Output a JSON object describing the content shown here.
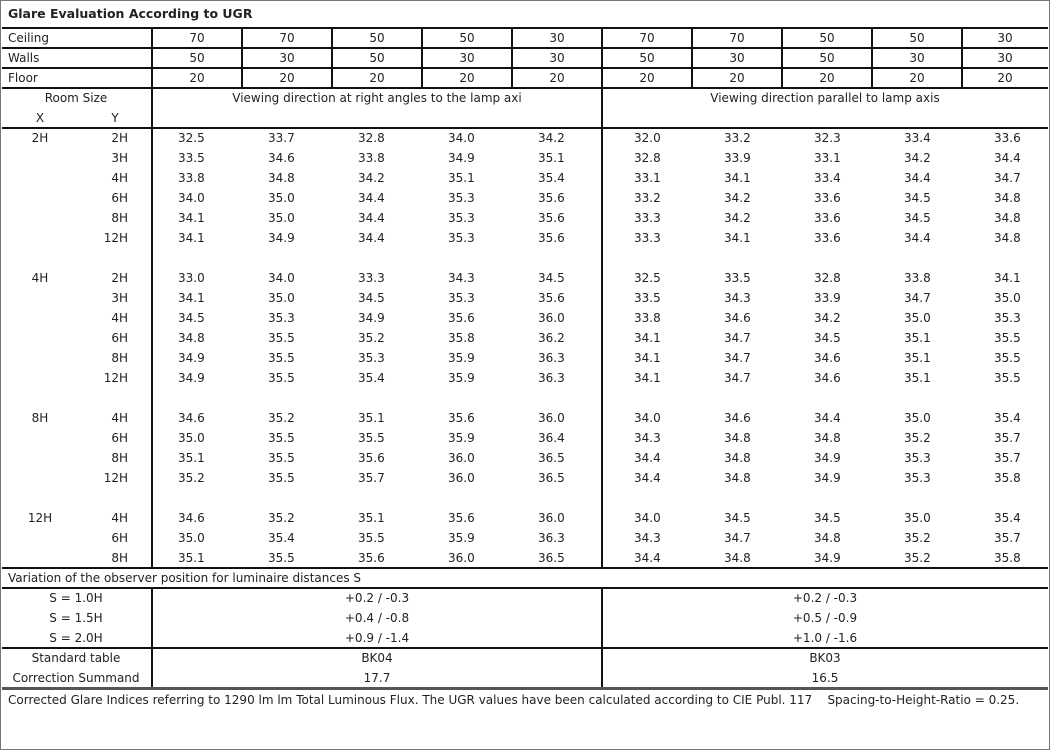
{
  "title": "Glare Evaluation According to UGR",
  "reflectances": [
    {
      "label": "Ceiling",
      "values": [
        "70",
        "70",
        "50",
        "50",
        "30",
        "70",
        "70",
        "50",
        "50",
        "30"
      ]
    },
    {
      "label": "Walls",
      "values": [
        "50",
        "30",
        "50",
        "30",
        "30",
        "50",
        "30",
        "50",
        "30",
        "30"
      ]
    },
    {
      "label": "Floor",
      "values": [
        "20",
        "20",
        "20",
        "20",
        "20",
        "20",
        "20",
        "20",
        "20",
        "20"
      ]
    }
  ],
  "room_size_label": "Room Size",
  "x_label": "X",
  "y_label": "Y",
  "perp_header": "Viewing direction at right angles to the lamp axi",
  "para_header": "Viewing direction parallel to lamp axis",
  "groups": [
    {
      "x": "2H",
      "rows": [
        {
          "y": "2H",
          "perp": [
            "32.5",
            "33.7",
            "32.8",
            "34.0",
            "34.2"
          ],
          "para": [
            "32.0",
            "33.2",
            "32.3",
            "33.4",
            "33.6"
          ]
        },
        {
          "y": "3H",
          "perp": [
            "33.5",
            "34.6",
            "33.8",
            "34.9",
            "35.1"
          ],
          "para": [
            "32.8",
            "33.9",
            "33.1",
            "34.2",
            "34.4"
          ]
        },
        {
          "y": "4H",
          "perp": [
            "33.8",
            "34.8",
            "34.2",
            "35.1",
            "35.4"
          ],
          "para": [
            "33.1",
            "34.1",
            "33.4",
            "34.4",
            "34.7"
          ]
        },
        {
          "y": "6H",
          "perp": [
            "34.0",
            "35.0",
            "34.4",
            "35.3",
            "35.6"
          ],
          "para": [
            "33.2",
            "34.2",
            "33.6",
            "34.5",
            "34.8"
          ]
        },
        {
          "y": "8H",
          "perp": [
            "34.1",
            "35.0",
            "34.4",
            "35.3",
            "35.6"
          ],
          "para": [
            "33.3",
            "34.2",
            "33.6",
            "34.5",
            "34.8"
          ]
        },
        {
          "y": "12H",
          "perp": [
            "34.1",
            "34.9",
            "34.4",
            "35.3",
            "35.6"
          ],
          "para": [
            "33.3",
            "34.1",
            "33.6",
            "34.4",
            "34.8"
          ]
        }
      ]
    },
    {
      "x": "4H",
      "rows": [
        {
          "y": "2H",
          "perp": [
            "33.0",
            "34.0",
            "33.3",
            "34.3",
            "34.5"
          ],
          "para": [
            "32.5",
            "33.5",
            "32.8",
            "33.8",
            "34.1"
          ]
        },
        {
          "y": "3H",
          "perp": [
            "34.1",
            "35.0",
            "34.5",
            "35.3",
            "35.6"
          ],
          "para": [
            "33.5",
            "34.3",
            "33.9",
            "34.7",
            "35.0"
          ]
        },
        {
          "y": "4H",
          "perp": [
            "34.5",
            "35.3",
            "34.9",
            "35.6",
            "36.0"
          ],
          "para": [
            "33.8",
            "34.6",
            "34.2",
            "35.0",
            "35.3"
          ]
        },
        {
          "y": "6H",
          "perp": [
            "34.8",
            "35.5",
            "35.2",
            "35.8",
            "36.2"
          ],
          "para": [
            "34.1",
            "34.7",
            "34.5",
            "35.1",
            "35.5"
          ]
        },
        {
          "y": "8H",
          "perp": [
            "34.9",
            "35.5",
            "35.3",
            "35.9",
            "36.3"
          ],
          "para": [
            "34.1",
            "34.7",
            "34.6",
            "35.1",
            "35.5"
          ]
        },
        {
          "y": "12H",
          "perp": [
            "34.9",
            "35.5",
            "35.4",
            "35.9",
            "36.3"
          ],
          "para": [
            "34.1",
            "34.7",
            "34.6",
            "35.1",
            "35.5"
          ]
        }
      ]
    },
    {
      "x": "8H",
      "rows": [
        {
          "y": "4H",
          "perp": [
            "34.6",
            "35.2",
            "35.1",
            "35.6",
            "36.0"
          ],
          "para": [
            "34.0",
            "34.6",
            "34.4",
            "35.0",
            "35.4"
          ]
        },
        {
          "y": "6H",
          "perp": [
            "35.0",
            "35.5",
            "35.5",
            "35.9",
            "36.4"
          ],
          "para": [
            "34.3",
            "34.8",
            "34.8",
            "35.2",
            "35.7"
          ]
        },
        {
          "y": "8H",
          "perp": [
            "35.1",
            "35.5",
            "35.6",
            "36.0",
            "36.5"
          ],
          "para": [
            "34.4",
            "34.8",
            "34.9",
            "35.3",
            "35.7"
          ]
        },
        {
          "y": "12H",
          "perp": [
            "35.2",
            "35.5",
            "35.7",
            "36.0",
            "36.5"
          ],
          "para": [
            "34.4",
            "34.8",
            "34.9",
            "35.3",
            "35.8"
          ]
        }
      ]
    },
    {
      "x": "12H",
      "rows": [
        {
          "y": "4H",
          "perp": [
            "34.6",
            "35.2",
            "35.1",
            "35.6",
            "36.0"
          ],
          "para": [
            "34.0",
            "34.5",
            "34.5",
            "35.0",
            "35.4"
          ]
        },
        {
          "y": "6H",
          "perp": [
            "35.0",
            "35.4",
            "35.5",
            "35.9",
            "36.3"
          ],
          "para": [
            "34.3",
            "34.7",
            "34.8",
            "35.2",
            "35.7"
          ]
        },
        {
          "y": "8H",
          "perp": [
            "35.1",
            "35.5",
            "35.6",
            "36.0",
            "36.5"
          ],
          "para": [
            "34.4",
            "34.8",
            "34.9",
            "35.2",
            "35.8"
          ]
        }
      ]
    }
  ],
  "variation_title": "Variation of the observer position for luminaire distances S",
  "variations": [
    {
      "label": "S = 1.0H",
      "perp": "+0.2 / -0.3",
      "para": "+0.2 / -0.3"
    },
    {
      "label": "S = 1.5H",
      "perp": "+0.4 / -0.8",
      "para": "+0.5 / -0.9"
    },
    {
      "label": "S = 2.0H",
      "perp": "+0.9 / -1.4",
      "para": "+1.0 / -1.6"
    }
  ],
  "standard_table": {
    "label": "Standard table",
    "perp": "BK04",
    "para": "BK03"
  },
  "correction_summand": {
    "label": "Correction Summand",
    "perp": "17.7",
    "para": "16.5"
  },
  "footer": "Corrected Glare Indices referring to 1290 lm lm Total Luminous Flux. The UGR values have been calculated according to CIE Publ. 117    Spacing-to-Height-Ratio = 0.25."
}
